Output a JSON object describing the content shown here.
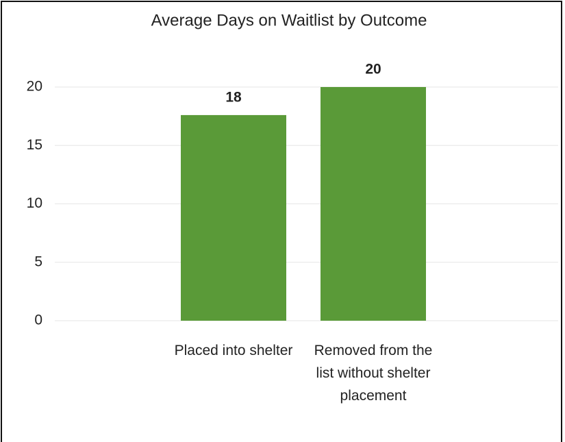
{
  "chart_data": {
    "type": "bar",
    "title": "Average Days on Waitlist by Outcome",
    "categories": [
      "Placed into shelter",
      "Removed from the list without shelter placement"
    ],
    "values": [
      17.6,
      20
    ],
    "value_labels": [
      "18",
      "20"
    ],
    "color": "#5a9a38",
    "ylim": [
      0,
      20
    ],
    "yticks": [
      0,
      5,
      10,
      15,
      20
    ],
    "grid": true
  }
}
